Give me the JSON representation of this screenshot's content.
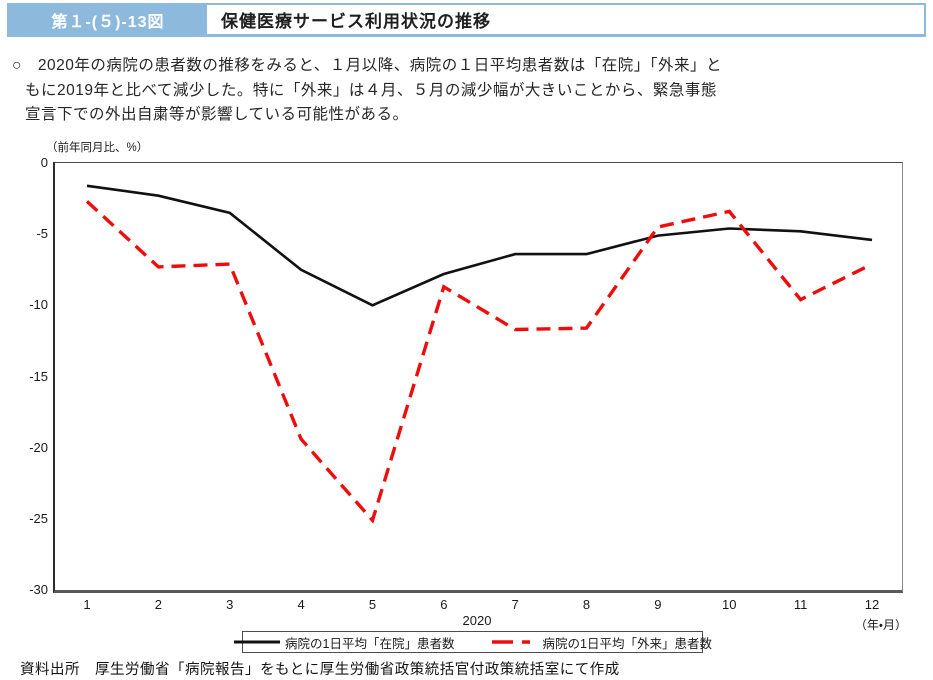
{
  "header": {
    "figure_label": "第１-(５)-13図",
    "title": "保健医療サービス利用状況の推移",
    "accent_color": "#8db9dc"
  },
  "summary": {
    "lines": [
      "○　2020年の病院の患者数の推移をみると、１月以降、病院の１日平均患者数は「在院」「外来」と",
      "もに2019年と比べて減少した。特に「外来」は４月、５月の減少幅が大きいことから、緊急事態",
      "宣言下での外出自粛等が影響している可能性がある。"
    ]
  },
  "chart_data": {
    "type": "line",
    "title": "",
    "y_unit_label": "（前年同月比、%）",
    "x_year_label": "2020",
    "x_unit_label": "（年・月）",
    "x": [
      1,
      2,
      3,
      4,
      5,
      6,
      7,
      8,
      9,
      10,
      11,
      12
    ],
    "ylim": [
      -30,
      0
    ],
    "yticks": [
      0,
      -5,
      -10,
      -15,
      -20,
      -25,
      -30
    ],
    "grid": false,
    "legend_position": "bottom",
    "series": [
      {
        "name": "病院の1日平均「在院」患者数",
        "line_style": "solid",
        "color": "#111111",
        "values": [
          -1.6,
          -2.3,
          -3.5,
          -7.5,
          -10.0,
          -7.8,
          -6.4,
          -6.4,
          -5.1,
          -4.6,
          -4.8,
          -5.4
        ]
      },
      {
        "name": "病院の1日平均「外来」患者数",
        "line_style": "dashed",
        "color": "#ee0d0d",
        "values": [
          -2.7,
          -7.3,
          -7.1,
          -19.4,
          -25.1,
          -8.7,
          -11.7,
          -11.6,
          -4.5,
          -3.4,
          -9.6,
          -7.1
        ]
      }
    ]
  },
  "source": "資料出所　厚生労働省「病院報告」をもとに厚生労働省政策統括官付政策統括室にて作成"
}
